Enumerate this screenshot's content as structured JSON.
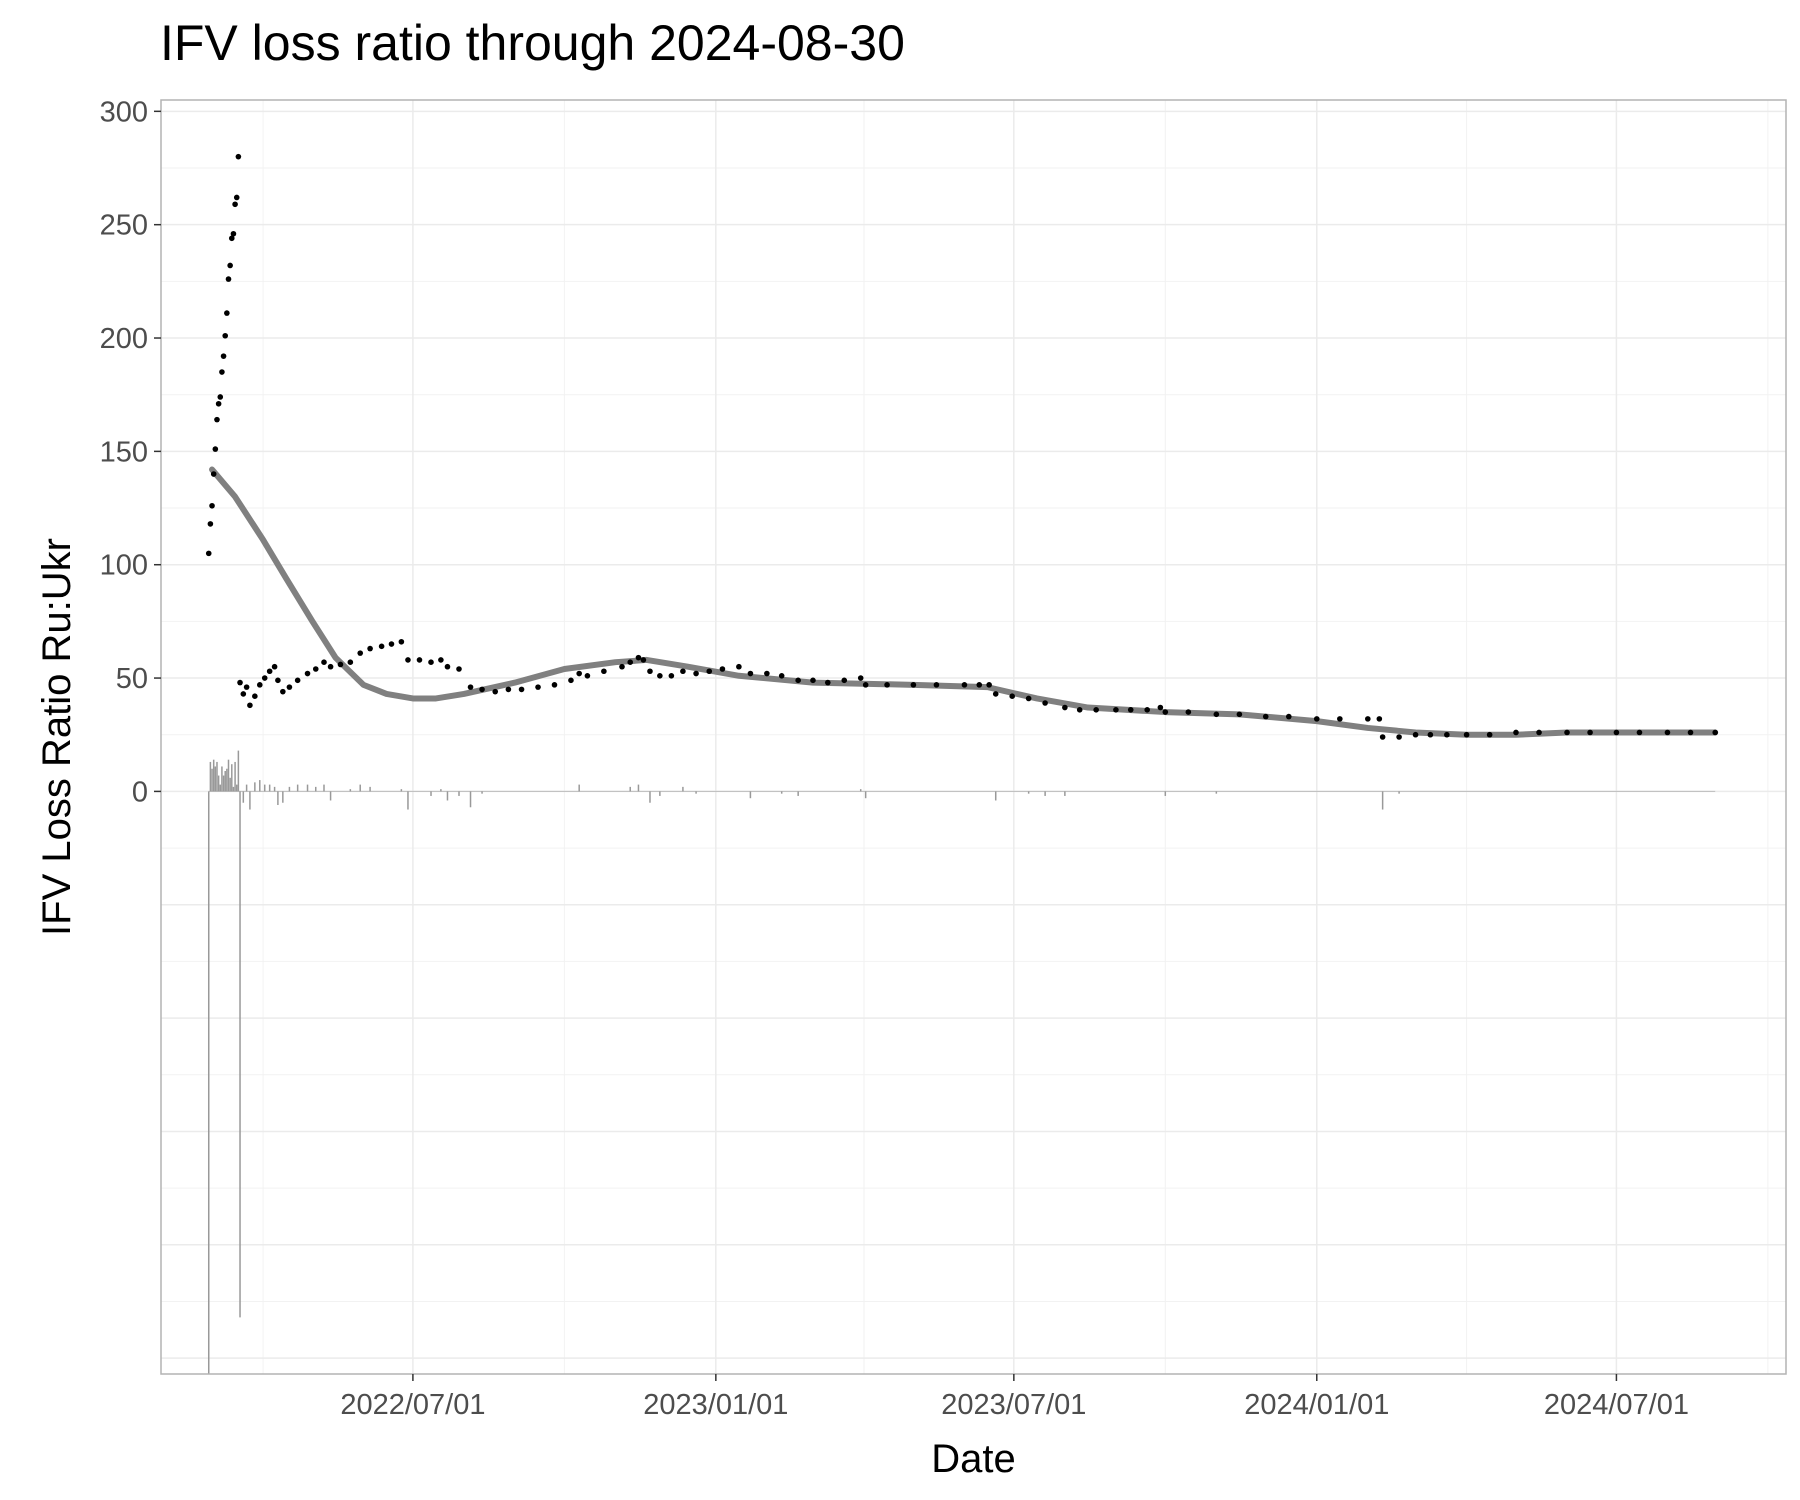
{
  "chart_data": {
    "type": "scatter",
    "title": "IFV loss ratio through 2024-08-30",
    "xlabel": "Date",
    "ylabel": "IFV Loss Ratio Ru:Ukr",
    "x_type": "date",
    "xlim": [
      "2022-01-29",
      "2024-10-12"
    ],
    "ylim": [
      -257,
      305
    ],
    "x_ticks": [
      "2022-07-01",
      "2023-01-01",
      "2023-07-01",
      "2024-01-01",
      "2024-07-01"
    ],
    "x_tick_labels": [
      "2022/07/01",
      "2023/01/01",
      "2023/07/01",
      "2024/01/01",
      "2024/07/01"
    ],
    "y_ticks": [
      0,
      50,
      100,
      150,
      200,
      250,
      300
    ],
    "y_tick_labels": [
      "0",
      "50",
      "100",
      "150",
      "200",
      "250",
      "300"
    ],
    "grid": true,
    "legend": "none",
    "series": [
      {
        "kind": "points",
        "color": "#000000",
        "points": [
          [
            "2022-02-27",
            105
          ],
          [
            "2022-02-28",
            118
          ],
          [
            "2022-03-01",
            126
          ],
          [
            "2022-03-02",
            140
          ],
          [
            "2022-03-03",
            151
          ],
          [
            "2022-03-04",
            164
          ],
          [
            "2022-03-05",
            171
          ],
          [
            "2022-03-06",
            174
          ],
          [
            "2022-03-07",
            185
          ],
          [
            "2022-03-08",
            192
          ],
          [
            "2022-03-09",
            201
          ],
          [
            "2022-03-10",
            211
          ],
          [
            "2022-03-11",
            226
          ],
          [
            "2022-03-12",
            232
          ],
          [
            "2022-03-13",
            244
          ],
          [
            "2022-03-14",
            246
          ],
          [
            "2022-03-15",
            259
          ],
          [
            "2022-03-16",
            262
          ],
          [
            "2022-03-17",
            280
          ],
          [
            "2022-03-18",
            48
          ],
          [
            "2022-03-20",
            43
          ],
          [
            "2022-03-22",
            46
          ],
          [
            "2022-03-24",
            38
          ],
          [
            "2022-03-27",
            42
          ],
          [
            "2022-03-30",
            47
          ],
          [
            "2022-04-02",
            50
          ],
          [
            "2022-04-05",
            53
          ],
          [
            "2022-04-08",
            55
          ],
          [
            "2022-04-10",
            49
          ],
          [
            "2022-04-13",
            44
          ],
          [
            "2022-04-17",
            46
          ],
          [
            "2022-04-22",
            49
          ],
          [
            "2022-04-28",
            52
          ],
          [
            "2022-05-03",
            54
          ],
          [
            "2022-05-08",
            57
          ],
          [
            "2022-05-12",
            55
          ],
          [
            "2022-05-18",
            56
          ],
          [
            "2022-05-24",
            57
          ],
          [
            "2022-05-30",
            61
          ],
          [
            "2022-06-05",
            63
          ],
          [
            "2022-06-12",
            64
          ],
          [
            "2022-06-18",
            65
          ],
          [
            "2022-06-24",
            66
          ],
          [
            "2022-06-28",
            58
          ],
          [
            "2022-07-05",
            58
          ],
          [
            "2022-07-12",
            57
          ],
          [
            "2022-07-18",
            58
          ],
          [
            "2022-07-22",
            55
          ],
          [
            "2022-07-29",
            54
          ],
          [
            "2022-08-05",
            46
          ],
          [
            "2022-08-12",
            45
          ],
          [
            "2022-08-20",
            44
          ],
          [
            "2022-08-28",
            45
          ],
          [
            "2022-09-05",
            45
          ],
          [
            "2022-09-15",
            46
          ],
          [
            "2022-09-25",
            47
          ],
          [
            "2022-10-05",
            49
          ],
          [
            "2022-10-10",
            52
          ],
          [
            "2022-10-15",
            51
          ],
          [
            "2022-10-25",
            53
          ],
          [
            "2022-11-05",
            55
          ],
          [
            "2022-11-10",
            57
          ],
          [
            "2022-11-15",
            59
          ],
          [
            "2022-11-18",
            58
          ],
          [
            "2022-11-22",
            53
          ],
          [
            "2022-11-28",
            51
          ],
          [
            "2022-12-05",
            51
          ],
          [
            "2022-12-12",
            53
          ],
          [
            "2022-12-20",
            52
          ],
          [
            "2022-12-28",
            53
          ],
          [
            "2023-01-05",
            54
          ],
          [
            "2023-01-15",
            55
          ],
          [
            "2023-01-22",
            52
          ],
          [
            "2023-02-01",
            52
          ],
          [
            "2023-02-10",
            51
          ],
          [
            "2023-02-20",
            49
          ],
          [
            "2023-03-01",
            49
          ],
          [
            "2023-03-10",
            48
          ],
          [
            "2023-03-20",
            49
          ],
          [
            "2023-03-30",
            50
          ],
          [
            "2023-04-02",
            47
          ],
          [
            "2023-04-15",
            47
          ],
          [
            "2023-05-01",
            47
          ],
          [
            "2023-05-15",
            47
          ],
          [
            "2023-06-01",
            47
          ],
          [
            "2023-06-10",
            47
          ],
          [
            "2023-06-16",
            47
          ],
          [
            "2023-06-20",
            43
          ],
          [
            "2023-06-30",
            42
          ],
          [
            "2023-07-10",
            41
          ],
          [
            "2023-07-20",
            39
          ],
          [
            "2023-08-01",
            37
          ],
          [
            "2023-08-10",
            36
          ],
          [
            "2023-08-20",
            36
          ],
          [
            "2023-09-01",
            36
          ],
          [
            "2023-09-10",
            36
          ],
          [
            "2023-09-20",
            36
          ],
          [
            "2023-09-28",
            37
          ],
          [
            "2023-10-01",
            35
          ],
          [
            "2023-10-15",
            35
          ],
          [
            "2023-11-01",
            34
          ],
          [
            "2023-11-15",
            34
          ],
          [
            "2023-12-01",
            33
          ],
          [
            "2023-12-15",
            33
          ],
          [
            "2024-01-01",
            32
          ],
          [
            "2024-01-15",
            32
          ],
          [
            "2024-02-01",
            32
          ],
          [
            "2024-02-08",
            32
          ],
          [
            "2024-02-10",
            24
          ],
          [
            "2024-02-20",
            24
          ],
          [
            "2024-03-01",
            25
          ],
          [
            "2024-03-10",
            25
          ],
          [
            "2024-03-20",
            25
          ],
          [
            "2024-04-01",
            25
          ],
          [
            "2024-04-15",
            25
          ],
          [
            "2024-05-01",
            26
          ],
          [
            "2024-05-15",
            26
          ],
          [
            "2024-06-01",
            26
          ],
          [
            "2024-06-15",
            26
          ],
          [
            "2024-07-01",
            26
          ],
          [
            "2024-07-15",
            26
          ],
          [
            "2024-08-01",
            26
          ],
          [
            "2024-08-15",
            26
          ],
          [
            "2024-08-30",
            26
          ]
        ]
      },
      {
        "kind": "smooth-line",
        "color": "#808080",
        "points": [
          [
            "2022-03-01",
            142
          ],
          [
            "2022-03-15",
            130
          ],
          [
            "2022-04-01",
            111
          ],
          [
            "2022-04-15",
            94
          ],
          [
            "2022-05-01",
            75
          ],
          [
            "2022-05-15",
            59
          ],
          [
            "2022-06-01",
            47
          ],
          [
            "2022-06-15",
            43
          ],
          [
            "2022-07-01",
            41
          ],
          [
            "2022-07-15",
            41
          ],
          [
            "2022-08-01",
            43
          ],
          [
            "2022-09-01",
            48
          ],
          [
            "2022-10-01",
            54
          ],
          [
            "2022-11-01",
            57
          ],
          [
            "2022-11-20",
            58
          ],
          [
            "2022-12-15",
            55
          ],
          [
            "2023-01-15",
            51
          ],
          [
            "2023-03-01",
            48
          ],
          [
            "2023-05-01",
            47
          ],
          [
            "2023-06-15",
            46
          ],
          [
            "2023-07-15",
            41
          ],
          [
            "2023-08-15",
            37
          ],
          [
            "2023-10-01",
            35
          ],
          [
            "2023-11-15",
            34
          ],
          [
            "2024-01-01",
            31
          ],
          [
            "2024-02-01",
            28
          ],
          [
            "2024-03-01",
            26
          ],
          [
            "2024-04-01",
            25
          ],
          [
            "2024-05-01",
            25
          ],
          [
            "2024-06-01",
            26
          ],
          [
            "2024-07-01",
            26
          ],
          [
            "2024-08-30",
            26
          ]
        ]
      },
      {
        "kind": "daily-change-bars",
        "color": "#999999",
        "bars": [
          [
            "2022-02-27",
            -257
          ],
          [
            "2022-02-28",
            13
          ],
          [
            "2022-03-01",
            10
          ],
          [
            "2022-03-02",
            14
          ],
          [
            "2022-03-03",
            11
          ],
          [
            "2022-03-04",
            13
          ],
          [
            "2022-03-05",
            7
          ],
          [
            "2022-03-06",
            3
          ],
          [
            "2022-03-07",
            11
          ],
          [
            "2022-03-08",
            7
          ],
          [
            "2022-03-09",
            9
          ],
          [
            "2022-03-10",
            10
          ],
          [
            "2022-03-11",
            14
          ],
          [
            "2022-03-12",
            6
          ],
          [
            "2022-03-13",
            12
          ],
          [
            "2022-03-14",
            2
          ],
          [
            "2022-03-15",
            13
          ],
          [
            "2022-03-16",
            3
          ],
          [
            "2022-03-17",
            18
          ],
          [
            "2022-03-18",
            -232
          ],
          [
            "2022-03-20",
            -5
          ],
          [
            "2022-03-22",
            3
          ],
          [
            "2022-03-24",
            -8
          ],
          [
            "2022-03-27",
            4
          ],
          [
            "2022-03-30",
            5
          ],
          [
            "2022-04-02",
            3
          ],
          [
            "2022-04-05",
            3
          ],
          [
            "2022-04-08",
            2
          ],
          [
            "2022-04-10",
            -6
          ],
          [
            "2022-04-13",
            -5
          ],
          [
            "2022-04-17",
            2
          ],
          [
            "2022-04-22",
            3
          ],
          [
            "2022-04-28",
            3
          ],
          [
            "2022-05-03",
            2
          ],
          [
            "2022-05-08",
            3
          ],
          [
            "2022-05-12",
            -4
          ],
          [
            "2022-05-24",
            1
          ],
          [
            "2022-05-30",
            3
          ],
          [
            "2022-06-05",
            2
          ],
          [
            "2022-06-24",
            1
          ],
          [
            "2022-06-28",
            -8
          ],
          [
            "2022-07-12",
            -2
          ],
          [
            "2022-07-18",
            1
          ],
          [
            "2022-07-22",
            -4
          ],
          [
            "2022-07-29",
            -2
          ],
          [
            "2022-08-05",
            -7
          ],
          [
            "2022-08-12",
            -1
          ],
          [
            "2022-10-10",
            3
          ],
          [
            "2022-11-10",
            2
          ],
          [
            "2022-11-15",
            3
          ],
          [
            "2022-11-22",
            -5
          ],
          [
            "2022-11-28",
            -2
          ],
          [
            "2022-12-12",
            2
          ],
          [
            "2022-12-20",
            -1
          ],
          [
            "2023-01-22",
            -3
          ],
          [
            "2023-02-10",
            -1
          ],
          [
            "2023-02-20",
            -2
          ],
          [
            "2023-03-30",
            1
          ],
          [
            "2023-04-02",
            -3
          ],
          [
            "2023-06-20",
            -4
          ],
          [
            "2023-07-10",
            -1
          ],
          [
            "2023-07-20",
            -2
          ],
          [
            "2023-08-01",
            -2
          ],
          [
            "2023-10-01",
            -2
          ],
          [
            "2023-11-01",
            -1
          ],
          [
            "2024-02-10",
            -8
          ],
          [
            "2024-02-20",
            -1
          ]
        ]
      }
    ]
  }
}
